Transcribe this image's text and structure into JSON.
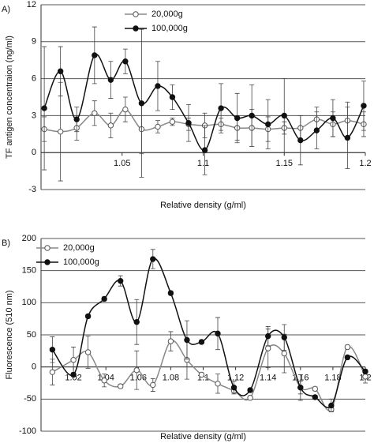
{
  "chart_data": [
    {
      "type": "line",
      "panel_label": "A)",
      "xlabel": "Relative density (g/ml)",
      "ylabel": "TF antigen concentraion (ng/ml)",
      "x": [
        1.002,
        1.012,
        1.022,
        1.033,
        1.043,
        1.052,
        1.062,
        1.072,
        1.081,
        1.091,
        1.101,
        1.111,
        1.121,
        1.13,
        1.14,
        1.15,
        1.16,
        1.17,
        1.18,
        1.189,
        1.199
      ],
      "xlim": [
        1.0,
        1.2
      ],
      "xticks": [
        1.05,
        1.1,
        1.15,
        1.2
      ],
      "ylim": [
        -3,
        12
      ],
      "yticks": [
        -3,
        0,
        3,
        6,
        9,
        12
      ],
      "grid": true,
      "legend": "top",
      "series": [
        {
          "name": "20,000g",
          "color": "#888888",
          "marker": "open",
          "values": [
            1.9,
            1.7,
            2.0,
            3.2,
            2.2,
            3.5,
            1.9,
            2.1,
            2.5,
            2.3,
            2.2,
            2.3,
            2.0,
            2.0,
            1.9,
            2.0,
            2.0,
            2.7,
            2.3,
            2.6,
            2.3
          ],
          "errors": [
            1,
            4,
            1,
            1,
            1,
            1,
            2,
            0.5,
            0.3,
            0.5,
            1,
            0.5,
            1,
            1.5,
            1,
            0.5,
            1,
            1,
            1,
            1.5,
            1
          ]
        },
        {
          "name": "100,000g",
          "color": "#111111",
          "marker": "filled",
          "values": [
            3.6,
            6.6,
            2.7,
            7.9,
            5.9,
            7.4,
            4.0,
            5.4,
            4.5,
            2.4,
            0.2,
            3.6,
            2.8,
            3.0,
            2.3,
            3.0,
            1.0,
            1.8,
            2.8,
            1.2,
            3.8
          ],
          "errors": [
            5,
            2,
            1,
            2.3,
            1.5,
            1,
            6,
            2,
            1,
            1.5,
            2,
            2,
            2,
            2.5,
            2,
            3,
            2,
            1.5,
            1.5,
            2.5,
            2
          ]
        }
      ]
    },
    {
      "type": "line",
      "panel_label": "B)",
      "xlabel": "Relative density (g/ml)",
      "ylabel": "Fluorescence (510 nm)",
      "x": [
        1.007,
        1.02,
        1.029,
        1.039,
        1.049,
        1.059,
        1.069,
        1.08,
        1.09,
        1.099,
        1.109,
        1.119,
        1.129,
        1.14,
        1.15,
        1.16,
        1.169,
        1.179,
        1.189,
        1.2
      ],
      "xlim": [
        1.0,
        1.2
      ],
      "xticks": [
        1.02,
        1.04,
        1.06,
        1.08,
        1.1,
        1.12,
        1.14,
        1.16,
        1.18,
        1.2
      ],
      "ylim": [
        -100,
        200
      ],
      "yticks": [
        -100,
        -50,
        0,
        50,
        100,
        150,
        200
      ],
      "grid": true,
      "legend": "top left",
      "series": [
        {
          "name": "20,000g",
          "color": "#888888",
          "marker": "open",
          "values": [
            -8,
            11,
            23,
            -21,
            -30,
            -5,
            -28,
            40,
            11,
            -12,
            -26,
            -37,
            -48,
            29,
            21,
            -32,
            -34,
            -66,
            31,
            -15
          ],
          "errors": [
            20,
            20,
            25,
            10,
            3,
            30,
            10,
            15,
            30,
            3,
            15,
            3,
            3,
            30,
            30,
            10,
            3,
            3,
            3,
            10
          ]
        },
        {
          "name": "100,000g",
          "color": "#111111",
          "marker": "filled",
          "values": [
            27,
            -12,
            79,
            106,
            134,
            70,
            168,
            115,
            42,
            39,
            52,
            -32,
            -36,
            48,
            46,
            -32,
            -47,
            -60,
            15,
            -7
          ],
          "errors": [
            20,
            3,
            3,
            3,
            8,
            35,
            15,
            3,
            30,
            3,
            25,
            10,
            3,
            15,
            20,
            20,
            3,
            10,
            3,
            3
          ]
        }
      ]
    }
  ]
}
